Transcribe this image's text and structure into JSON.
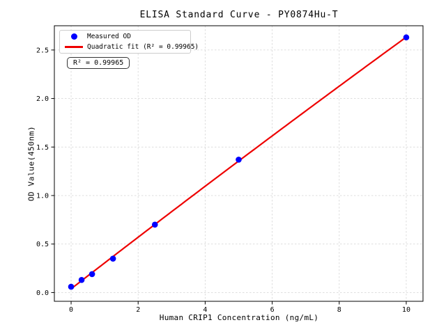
{
  "chart_data": {
    "type": "scatter",
    "title": "ELISA Standard Curve - PY0874Hu-T",
    "xlabel": "Human CRIP1 Concentration (ng/mL)",
    "ylabel": "OD Value(450nm)",
    "annotation": "R² = 0.99965",
    "legend": [
      {
        "label": "Measured OD",
        "marker": "circle",
        "color": "#0000ff"
      },
      {
        "label": "Quadratic fit (R² = 0.99965)",
        "marker": "line",
        "color": "#ee0000"
      }
    ],
    "series": [
      {
        "name": "Measured OD",
        "x": [
          0,
          0.3125,
          0.625,
          1.25,
          2.5,
          5,
          10
        ],
        "y": [
          0.06,
          0.13,
          0.19,
          0.35,
          0.7,
          1.37,
          2.63
        ]
      }
    ],
    "fit": {
      "type": "quadratic",
      "r_squared": 0.99965
    },
    "axes": {
      "xticks": [
        0,
        2,
        4,
        6,
        8,
        10
      ],
      "xtick_labels": [
        "0",
        "2",
        "4",
        "6",
        "8",
        "10"
      ],
      "yticks": [
        0.0,
        0.5,
        1.0,
        1.5,
        2.0,
        2.5
      ],
      "ytick_labels": [
        "0.0",
        "0.5",
        "1.0",
        "1.5",
        "2.0",
        "2.5"
      ],
      "xlim": [
        -0.5,
        10.5
      ],
      "ylim": [
        -0.09,
        2.75
      ],
      "grid": true,
      "legend_position": "upper-left"
    },
    "colors": {
      "marker": "#0000ff",
      "fit_line": "#ee0000",
      "grid": "#d9d9d9",
      "frame": "#000000",
      "background": "#ffffff"
    }
  }
}
